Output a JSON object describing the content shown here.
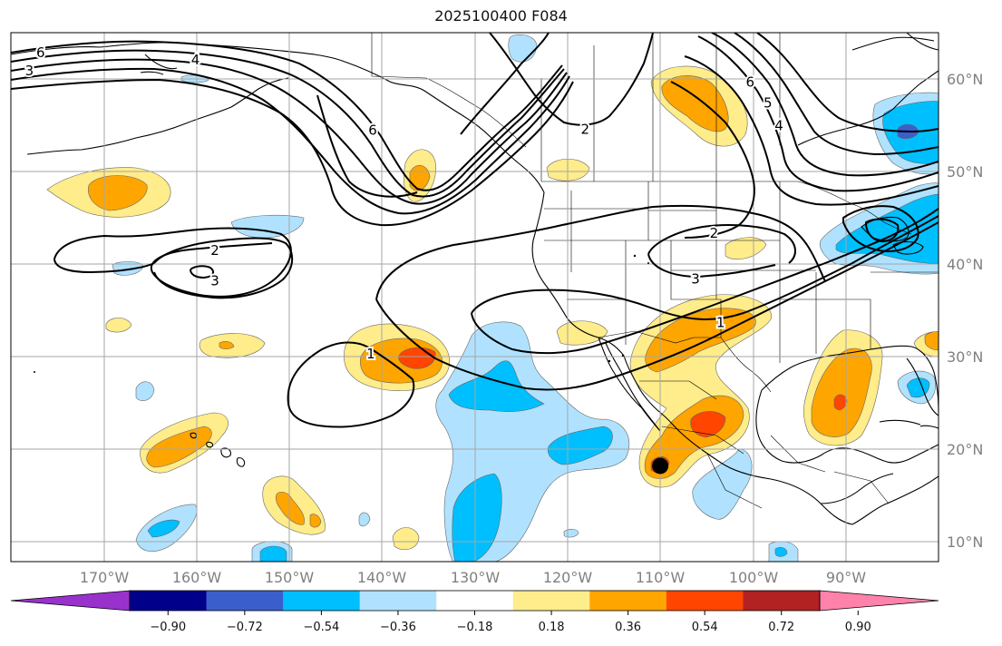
{
  "title": "2025100400 F084",
  "map": {
    "projection": "Plate Carree",
    "extent_lon": [
      -180,
      -80
    ],
    "extent_lat": [
      8,
      66
    ],
    "longitude_labels": [
      "170°W",
      "160°W",
      "150°W",
      "140°W",
      "130°W",
      "120°W",
      "110°W",
      "100°W",
      "90°W"
    ],
    "latitude_labels": [
      "60°N",
      "50°N",
      "40°N",
      "30°N",
      "20°N",
      "10°N"
    ],
    "marker": {
      "label": "black dot",
      "lon": -110,
      "lat": 18.5
    }
  },
  "colorbar": {
    "ticks": [
      "−0.90",
      "−0.72",
      "−0.54",
      "−0.36",
      "−0.18",
      "0.18",
      "0.36",
      "0.54",
      "0.72",
      "0.90"
    ],
    "colors": [
      "#9932cc",
      "#00008b",
      "#3a5fcd",
      "#00bfff",
      "#b0e2ff",
      "#ffffff",
      "#ffec8b",
      "#ffa500",
      "#ff4500",
      "#b22222",
      "#ff82ab"
    ]
  },
  "contour_labels": [
    {
      "text": "6",
      "lon": -176.8,
      "lat": 63.8
    },
    {
      "text": "3",
      "lon": -178.0,
      "lat": 61.8
    },
    {
      "text": "4",
      "lon": -160.1,
      "lat": 63.0
    },
    {
      "text": "6",
      "lon": -141.0,
      "lat": 55.3
    },
    {
      "text": "2",
      "lon": -118.1,
      "lat": 55.4
    },
    {
      "text": "6",
      "lon": -100.3,
      "lat": 60.6
    },
    {
      "text": "5",
      "lon": -98.4,
      "lat": 58.3
    },
    {
      "text": "4",
      "lon": -97.2,
      "lat": 55.8
    },
    {
      "text": "2",
      "lon": -158.0,
      "lat": 42.1
    },
    {
      "text": "3",
      "lon": -158.0,
      "lat": 38.8
    },
    {
      "text": "2",
      "lon": -104.2,
      "lat": 44.0
    },
    {
      "text": "3",
      "lon": -106.2,
      "lat": 39.0
    },
    {
      "text": "1",
      "lon": -141.2,
      "lat": 30.8
    },
    {
      "text": "1",
      "lon": -103.5,
      "lat": 34.2
    }
  ]
}
